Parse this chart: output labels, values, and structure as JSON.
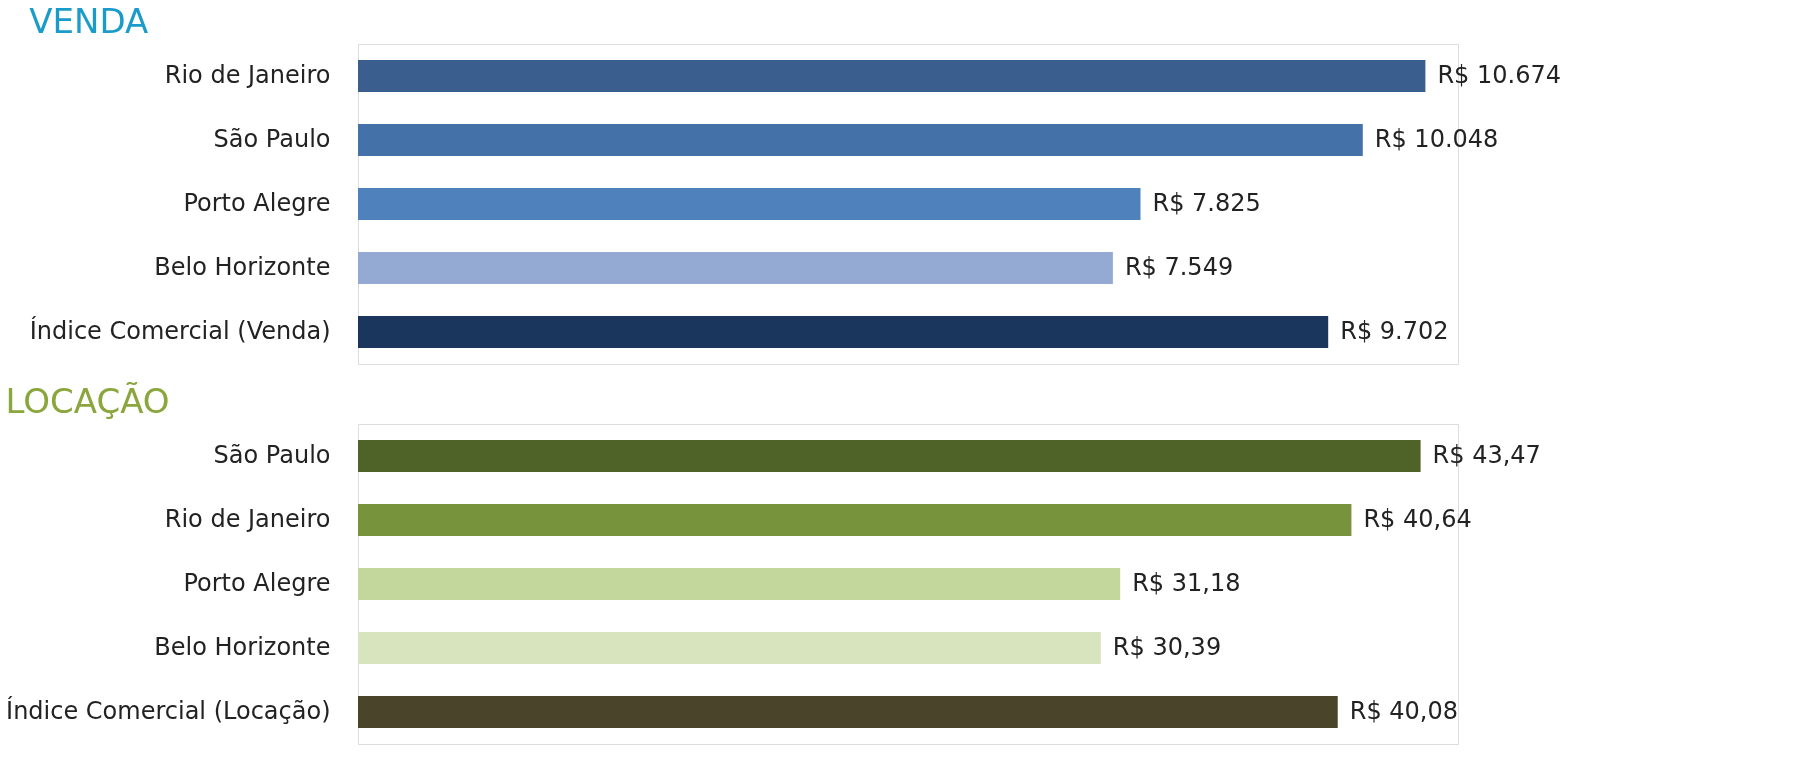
{
  "chart_data": [
    {
      "type": "bar",
      "orientation": "horizontal",
      "title": "VENDA",
      "categories": [
        "Rio de Janeiro",
        "São Paulo",
        "Porto Alegre",
        "Belo Horizonte",
        "Índice Comercial (Venda)"
      ],
      "values": [
        10674,
        10048,
        7825,
        7549,
        9702
      ],
      "value_labels": [
        "R$ 10.674",
        "R$ 10.048",
        "R$ 7.825",
        "R$ 7.549",
        "R$ 9.702"
      ],
      "colors": [
        "#3a5f8f",
        "#4472a8",
        "#4f81bd",
        "#95aad3",
        "#1a365d"
      ],
      "tick_labels": "y"
    },
    {
      "type": "bar",
      "orientation": "horizontal",
      "title": "LOCAÇÃO",
      "categories": [
        "São Paulo",
        "Rio de Janeiro",
        "Porto Alegre",
        "Belo Horizonte",
        "Índice Comercial (Locação)"
      ],
      "values": [
        43.47,
        40.64,
        31.18,
        30.39,
        40.08
      ],
      "value_labels": [
        "R$ 43,47",
        "R$ 40,64",
        "R$ 31,18",
        "R$ 30,39",
        "R$ 40,08"
      ],
      "colors": [
        "#4f6228",
        "#77933c",
        "#c3d69b",
        "#d7e4bd",
        "#4a452a"
      ],
      "tick_labels": "y"
    }
  ]
}
